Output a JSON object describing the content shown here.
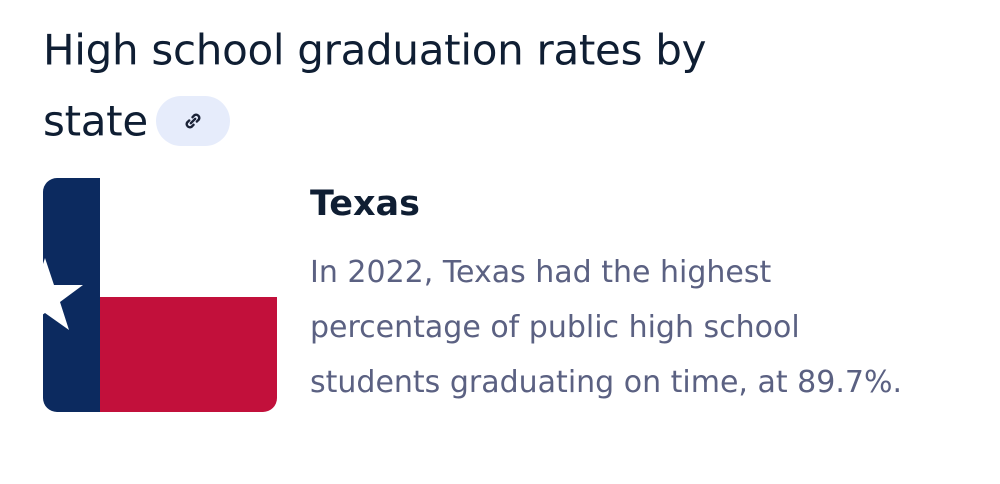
{
  "header": {
    "title": "High school graduation rates by state"
  },
  "card": {
    "title": "Texas",
    "description": "In 2022, Texas had the highest percentage of public high school students graduating on time, at 89.7%."
  }
}
